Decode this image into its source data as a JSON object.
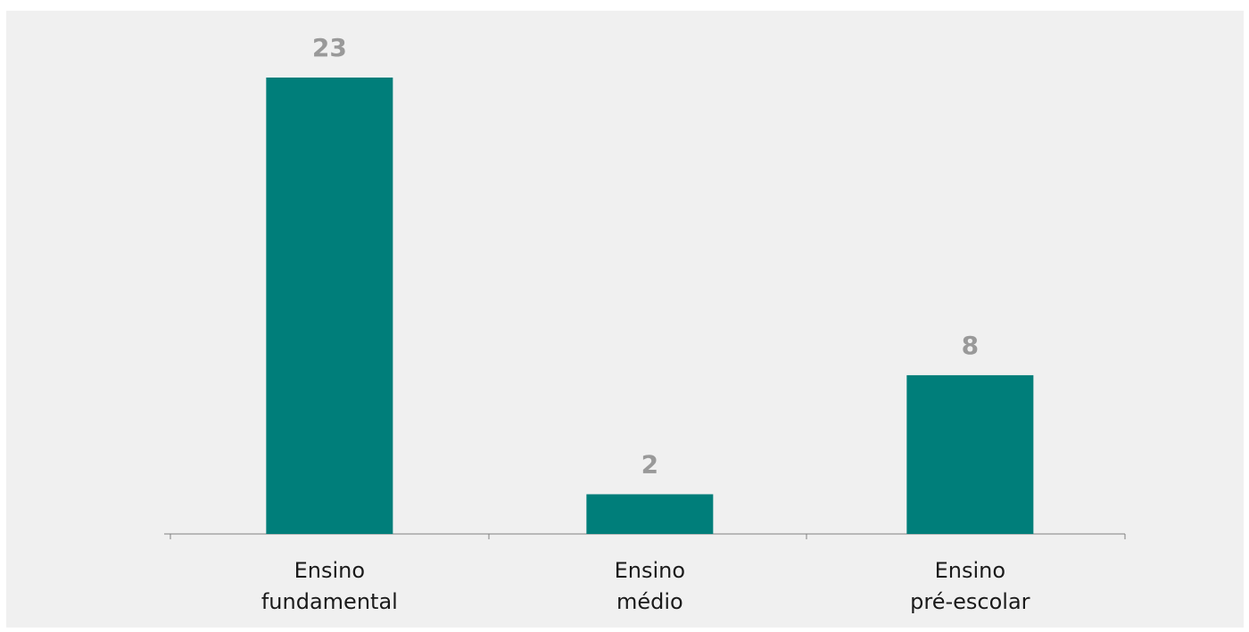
{
  "colors": {
    "bar": "#007e7a",
    "value_label": "#999999",
    "axis": "#7f7f7f",
    "background": "#f0f0f0"
  },
  "chart_data": {
    "type": "bar",
    "categories": [
      [
        "Ensino",
        "fundamental"
      ],
      [
        "Ensino",
        "médio"
      ],
      [
        "Ensino",
        "pré-escolar"
      ]
    ],
    "values": [
      23,
      2,
      8
    ],
    "data_labels": [
      "23",
      "2",
      "8"
    ],
    "ylim": [
      0,
      23
    ],
    "grid": false,
    "legend": "none"
  }
}
